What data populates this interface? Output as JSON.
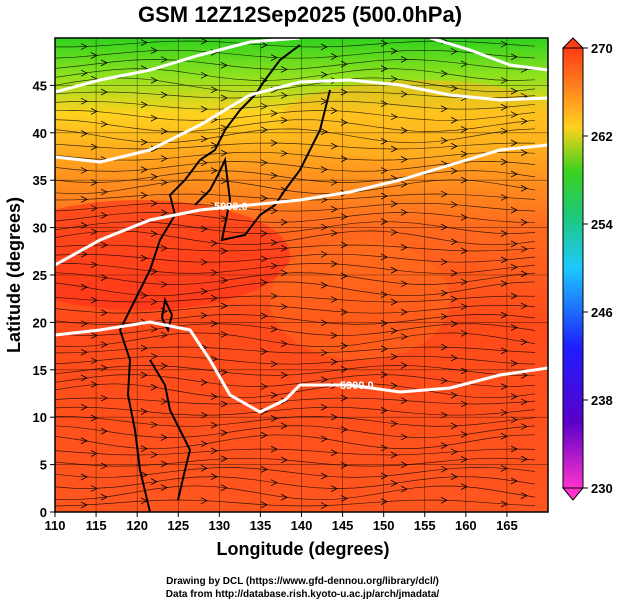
{
  "title": "GSM 12Z12Sep2025 (500.0hPa)",
  "credits": {
    "line1": "Drawing by DCL (https://www.gfd-dennou.org/library/dcl/)",
    "line2": "Data from http://database.rish.kyoto-u.ac.jp/arch/jmadata/"
  },
  "axes": {
    "xlabel": "Longitude (degrees)",
    "ylabel": "Latitude  (degrees)",
    "xlim": [
      110,
      170
    ],
    "ylim": [
      0,
      50
    ],
    "xticks": [
      "110",
      "115",
      "120",
      "125",
      "130",
      "135",
      "140",
      "145",
      "150",
      "155",
      "160",
      "165"
    ],
    "yticks": [
      "0",
      "5",
      "10",
      "15",
      "20",
      "25",
      "30",
      "35",
      "40",
      "45"
    ]
  },
  "colorbar": {
    "labels": [
      "230",
      "238",
      "246",
      "254",
      "262",
      "270"
    ],
    "range": [
      230,
      270
    ]
  },
  "contours": {
    "label1": "5900.0",
    "label2": "5900.0"
  },
  "colors": {
    "hot": "#ff3d14",
    "warm": "#ff8a1e",
    "mid": "#ffd21e",
    "cool": "#3fd21e",
    "contour": "#ffffff"
  }
}
